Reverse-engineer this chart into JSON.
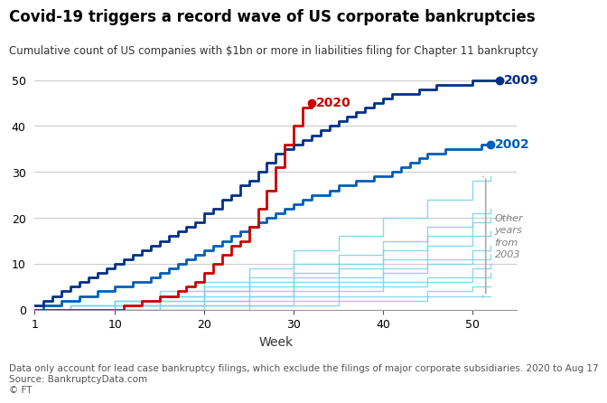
{
  "title": "Covid-19 triggers a record wave of US corporate bankruptcies",
  "subtitle": "Cumulative count of US companies with $1bn or more in liabilities filing for Chapter 11 bankruptcy",
  "xlabel": "Week",
  "footnote": "Data only account for lead case bankruptcy filings, which exclude the filings of major corporate subsidiaries. 2020 to Aug 17\nSource: BankruptcyData.com\n© FT",
  "xlim": [
    1,
    55
  ],
  "ylim": [
    0,
    52
  ],
  "xticks": [
    1,
    10,
    20,
    30,
    40,
    50
  ],
  "yticks": [
    0,
    10,
    20,
    30,
    40,
    50
  ],
  "bg_color": "#ffffff",
  "grid_color": "#cccccc",
  "year_2009": {
    "weeks": [
      1,
      2,
      3,
      4,
      5,
      6,
      7,
      8,
      9,
      10,
      11,
      12,
      13,
      14,
      15,
      16,
      17,
      18,
      19,
      20,
      21,
      22,
      23,
      24,
      25,
      26,
      27,
      28,
      29,
      30,
      31,
      32,
      33,
      34,
      35,
      36,
      37,
      38,
      39,
      40,
      41,
      42,
      43,
      44,
      45,
      46,
      47,
      48,
      49,
      50,
      51,
      52,
      53
    ],
    "values": [
      1,
      2,
      3,
      4,
      5,
      6,
      7,
      8,
      9,
      10,
      11,
      12,
      13,
      14,
      15,
      16,
      17,
      18,
      19,
      21,
      22,
      24,
      25,
      27,
      28,
      30,
      32,
      34,
      35,
      36,
      37,
      38,
      39,
      40,
      41,
      42,
      43,
      44,
      45,
      46,
      47,
      47,
      47,
      48,
      48,
      49,
      49,
      49,
      49,
      50,
      50,
      50,
      50
    ],
    "color": "#003087",
    "linewidth": 2.0,
    "label": "2009",
    "end_week": 53,
    "end_value": 50
  },
  "year_2002": {
    "weeks": [
      1,
      2,
      3,
      4,
      5,
      6,
      7,
      8,
      9,
      10,
      11,
      12,
      13,
      14,
      15,
      16,
      17,
      18,
      19,
      20,
      21,
      22,
      23,
      24,
      25,
      26,
      27,
      28,
      29,
      30,
      31,
      32,
      33,
      34,
      35,
      36,
      37,
      38,
      39,
      40,
      41,
      42,
      43,
      44,
      45,
      46,
      47,
      48,
      49,
      50,
      51,
      52
    ],
    "values": [
      0,
      1,
      1,
      2,
      2,
      3,
      3,
      4,
      4,
      5,
      5,
      6,
      6,
      7,
      8,
      9,
      10,
      11,
      12,
      13,
      14,
      15,
      16,
      17,
      18,
      19,
      20,
      21,
      22,
      23,
      24,
      25,
      25,
      26,
      27,
      27,
      28,
      28,
      29,
      29,
      30,
      31,
      32,
      33,
      34,
      34,
      35,
      35,
      35,
      35,
      36,
      36
    ],
    "color": "#005eb8",
    "linewidth": 2.0,
    "label": "2002",
    "end_week": 52,
    "end_value": 36
  },
  "year_2020": {
    "weeks": [
      1,
      2,
      3,
      4,
      5,
      6,
      7,
      8,
      9,
      10,
      11,
      12,
      13,
      14,
      15,
      16,
      17,
      18,
      19,
      20,
      21,
      22,
      23,
      24,
      25,
      26,
      27,
      28,
      29,
      30,
      31,
      32
    ],
    "values": [
      0,
      0,
      0,
      0,
      0,
      0,
      0,
      0,
      0,
      0,
      1,
      1,
      2,
      2,
      3,
      3,
      4,
      5,
      6,
      8,
      10,
      12,
      14,
      15,
      18,
      22,
      26,
      31,
      36,
      40,
      44,
      45
    ],
    "color": "#cc0000",
    "linewidth": 2.0,
    "label": "2020",
    "end_week": 32,
    "end_value": 45
  },
  "other_years": {
    "data": [
      {
        "weeks": [
          1,
          5,
          10,
          15,
          20,
          25,
          30,
          35,
          40,
          45,
          50,
          52
        ],
        "values": [
          0,
          1,
          2,
          4,
          6,
          9,
          13,
          16,
          20,
          24,
          28,
          29
        ]
      },
      {
        "weeks": [
          1,
          5,
          10,
          15,
          20,
          25,
          30,
          35,
          40,
          45,
          50,
          52
        ],
        "values": [
          0,
          1,
          2,
          3,
          5,
          7,
          10,
          12,
          15,
          18,
          21,
          22
        ]
      },
      {
        "weeks": [
          1,
          5,
          10,
          15,
          20,
          25,
          30,
          35,
          40,
          45,
          50,
          52
        ],
        "values": [
          0,
          1,
          2,
          3,
          4,
          6,
          8,
          10,
          13,
          16,
          19,
          20
        ]
      },
      {
        "weeks": [
          1,
          5,
          10,
          15,
          20,
          25,
          30,
          35,
          40,
          45,
          50,
          52
        ],
        "values": [
          0,
          0,
          1,
          2,
          4,
          5,
          7,
          9,
          11,
          14,
          16,
          17
        ]
      },
      {
        "weeks": [
          1,
          5,
          10,
          15,
          20,
          25,
          30,
          35,
          40,
          45,
          50,
          52
        ],
        "values": [
          0,
          0,
          1,
          2,
          3,
          4,
          6,
          7,
          9,
          11,
          13,
          14
        ]
      },
      {
        "weeks": [
          1,
          5,
          10,
          15,
          20,
          25,
          30,
          35,
          40,
          45,
          50,
          52
        ],
        "values": [
          0,
          0,
          1,
          1,
          2,
          3,
          5,
          6,
          8,
          10,
          11,
          12
        ]
      },
      {
        "weeks": [
          1,
          5,
          10,
          15,
          20,
          25,
          30,
          35,
          40,
          45,
          50,
          52
        ],
        "values": [
          0,
          0,
          0,
          1,
          2,
          3,
          4,
          5,
          6,
          7,
          9,
          10
        ]
      },
      {
        "weeks": [
          1,
          5,
          10,
          15,
          20,
          25,
          30,
          35,
          40,
          45,
          50,
          52
        ],
        "values": [
          0,
          0,
          0,
          1,
          1,
          2,
          3,
          4,
          5,
          6,
          7,
          8
        ]
      },
      {
        "weeks": [
          1,
          5,
          10,
          15,
          20,
          25,
          30,
          35,
          40,
          45,
          50,
          52
        ],
        "values": [
          0,
          0,
          0,
          0,
          1,
          1,
          2,
          3,
          3,
          4,
          5,
          5
        ]
      },
      {
        "weeks": [
          1,
          5,
          10,
          15,
          20,
          25,
          30,
          35,
          40,
          45,
          50,
          52
        ],
        "values": [
          0,
          0,
          0,
          0,
          0,
          1,
          1,
          2,
          2,
          3,
          3,
          3
        ]
      }
    ],
    "color": "#7fd4e8",
    "linewidth": 1.0
  },
  "label_2009_color": "#003087",
  "label_2002_color": "#005eb8",
  "label_2020_color": "#cc0000",
  "other_label_color": "#808080",
  "other_label_text": "Other\nyears\nfrom\n2003"
}
